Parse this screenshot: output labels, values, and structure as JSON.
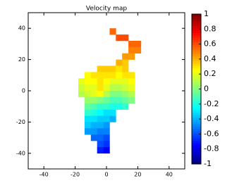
{
  "chart_data": {
    "type": "heatmap",
    "title": "Velocity map",
    "colormap": "jet",
    "xlim": [
      -50,
      50
    ],
    "ylim": [
      -50,
      50
    ],
    "xticks": [
      -40,
      -20,
      0,
      20,
      40
    ],
    "yticks": [
      -40,
      -20,
      0,
      20,
      40
    ],
    "clim": [
      -1,
      1
    ],
    "cticks": [
      1,
      0.8,
      0.6,
      0.4,
      0.2,
      0,
      -0.2,
      -0.4,
      -0.6,
      -0.8,
      -1
    ],
    "x": [
      4,
      8,
      12,
      16,
      20,
      16,
      20,
      12,
      16,
      8,
      12,
      -4,
      0,
      4,
      8,
      12,
      -12,
      -8,
      -4,
      0,
      4,
      8,
      12,
      16,
      -16,
      -12,
      -8,
      -4,
      0,
      4,
      8,
      12,
      16,
      -16,
      -12,
      -8,
      -4,
      0,
      4,
      8,
      12,
      16,
      -16,
      -12,
      -8,
      -4,
      0,
      4,
      8,
      12,
      16,
      -12,
      -8,
      -4,
      0,
      4,
      8,
      12,
      16,
      -12,
      -8,
      -4,
      0,
      4,
      8,
      12,
      -12,
      -8,
      -4,
      0,
      4,
      -12,
      -8,
      -4,
      0,
      4,
      -12,
      -8,
      -4,
      0,
      -12,
      -8,
      -4,
      0,
      -8,
      -4,
      0,
      -4,
      0,
      -4,
      0
    ],
    "y": [
      38,
      34,
      34,
      30,
      30,
      26,
      26,
      22,
      22,
      18,
      18,
      14,
      14,
      14,
      14,
      14,
      10,
      10,
      10,
      10,
      10,
      10,
      10,
      10,
      6,
      6,
      6,
      6,
      6,
      6,
      6,
      6,
      6,
      2,
      2,
      2,
      2,
      2,
      2,
      2,
      2,
      2,
      -2,
      -2,
      -2,
      -2,
      -2,
      -2,
      -2,
      -2,
      -2,
      -6,
      -6,
      -6,
      -6,
      -6,
      -6,
      -6,
      -6,
      -10,
      -10,
      -10,
      -10,
      -10,
      -10,
      -10,
      -14,
      -14,
      -14,
      -14,
      -14,
      -18,
      -18,
      -18,
      -18,
      -18,
      -22,
      -22,
      -22,
      -22,
      -26,
      -26,
      -26,
      -26,
      -30,
      -30,
      -30,
      -34,
      -34,
      -38,
      -38
    ],
    "values": [
      0.55,
      0.6,
      0.6,
      0.55,
      0.55,
      0.5,
      0.5,
      0.45,
      0.45,
      0.4,
      0.35,
      0.35,
      0.35,
      0.35,
      0.3,
      0.35,
      0.25,
      0.3,
      0.3,
      0.3,
      0.3,
      0.25,
      0.3,
      0.3,
      0.2,
      0.25,
      0.25,
      0.3,
      0.25,
      0.2,
      0.2,
      0.2,
      0.25,
      0.15,
      0.2,
      0.2,
      0.3,
      0.2,
      0.1,
      0.1,
      0.15,
      0.2,
      0.1,
      0.15,
      0.2,
      0.25,
      0.1,
      0,
      0,
      0.05,
      0.1,
      0.05,
      0.05,
      0,
      -0.05,
      -0.1,
      -0.1,
      -0.05,
      0,
      -0.05,
      -0.1,
      -0.15,
      -0.15,
      -0.2,
      -0.2,
      -0.15,
      -0.15,
      -0.2,
      -0.25,
      -0.3,
      -0.3,
      -0.3,
      -0.3,
      -0.35,
      -0.35,
      -0.4,
      -0.35,
      -0.4,
      -0.4,
      -0.45,
      -0.45,
      -0.45,
      -0.5,
      -0.5,
      -0.55,
      -0.55,
      -0.6,
      -0.6,
      -0.65,
      -0.7,
      -0.75
    ]
  }
}
